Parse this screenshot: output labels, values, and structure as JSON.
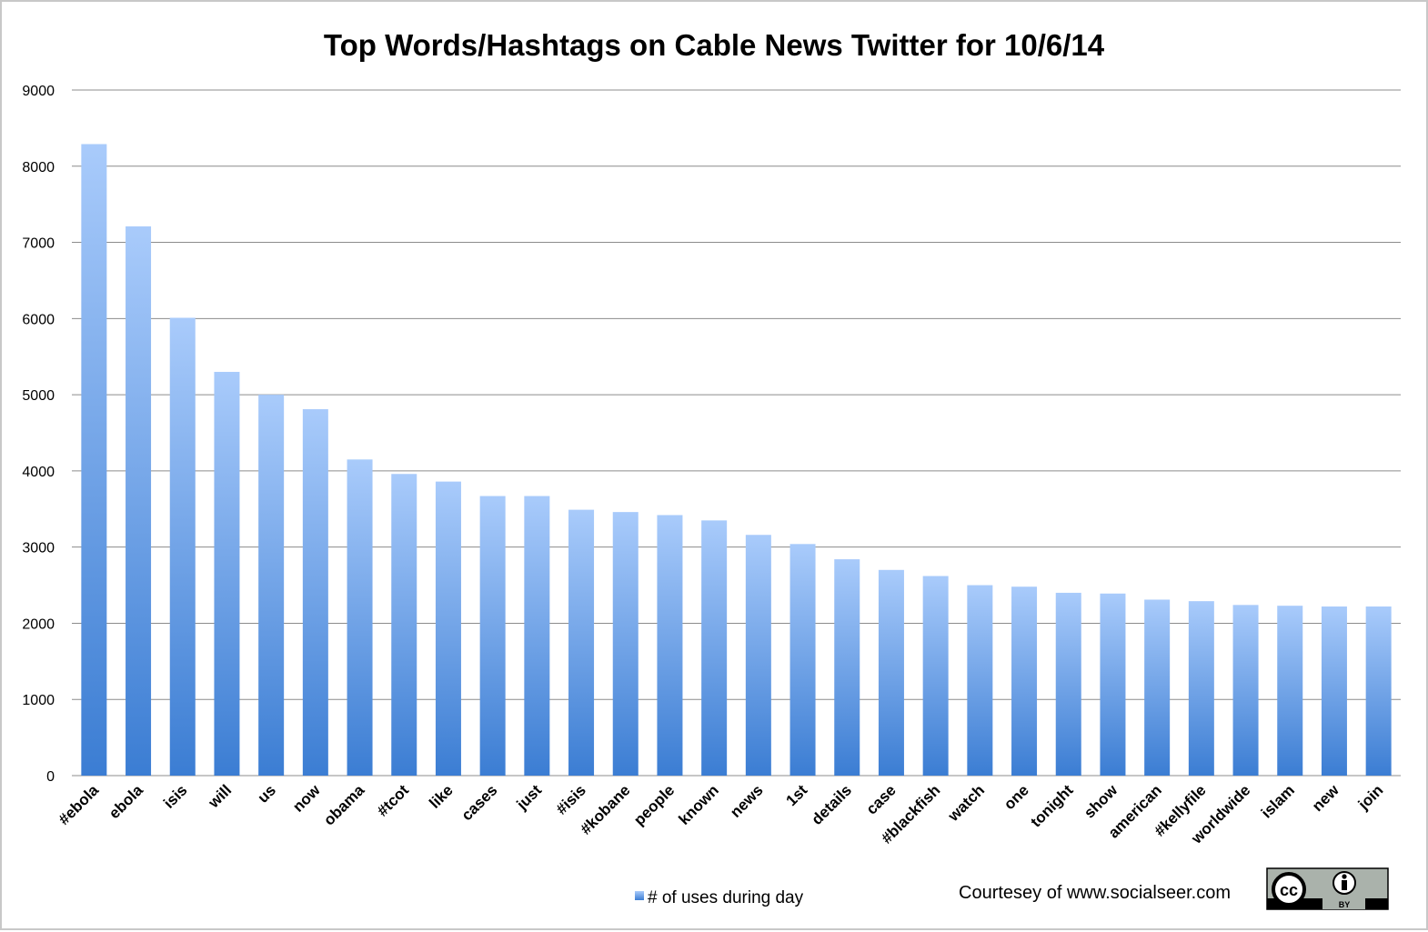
{
  "chart_data": {
    "type": "bar",
    "title": "Top Words/Hashtags on Cable News Twitter for 10/6/14",
    "xlabel": "",
    "ylabel": "",
    "ylim": [
      0,
      9000
    ],
    "yticks": [
      0,
      1000,
      2000,
      3000,
      4000,
      5000,
      6000,
      7000,
      8000,
      9000
    ],
    "grid": true,
    "legend_position": "bottom-center",
    "categories": [
      "#ebola",
      "ebola",
      "isis",
      "will",
      "us",
      "now",
      "obama",
      "#tcot",
      "like",
      "cases",
      "just",
      "#isis",
      "#kobane",
      "people",
      "known",
      "news",
      "1st",
      "details",
      "case",
      "#blackfish",
      "watch",
      "one",
      "tonight",
      "show",
      "american",
      "#kellyfile",
      "worldwide",
      "islam",
      "new",
      "join"
    ],
    "series": [
      {
        "name": "# of uses during day",
        "color": "#4a86d8",
        "values": [
          8290,
          7210,
          6010,
          5300,
          5000,
          4810,
          4150,
          3960,
          3860,
          3670,
          3670,
          3490,
          3460,
          3420,
          3350,
          3160,
          3040,
          2840,
          2700,
          2620,
          2500,
          2480,
          2400,
          2390,
          2310,
          2290,
          2240,
          2230,
          2220,
          2220
        ]
      }
    ]
  },
  "footer": {
    "credit": "Courtesey of www.socialseer.com",
    "license_badge": {
      "left": "cc",
      "right": "BY"
    }
  },
  "colors": {
    "bar_top": "#a9cbfb",
    "bar_bottom": "#3b7dd3",
    "grid": "#8c8c8c"
  }
}
